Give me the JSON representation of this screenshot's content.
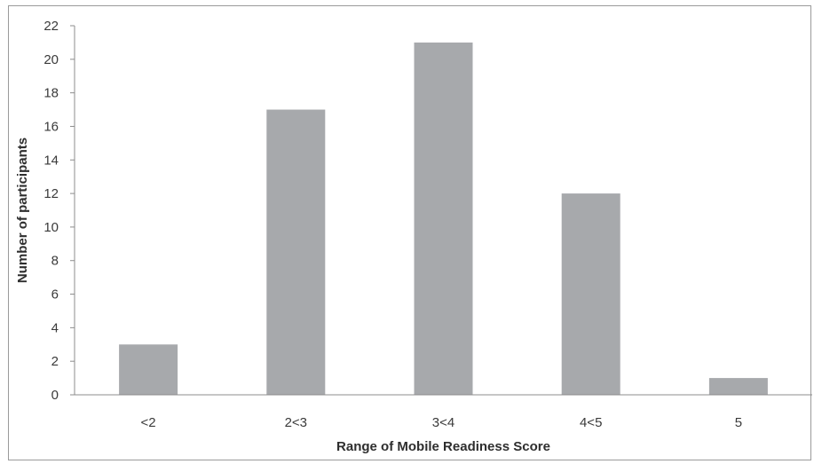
{
  "chart_data": {
    "type": "bar",
    "title": "",
    "xlabel": "Range of Mobile Readiness Score",
    "ylabel": "Number of participants",
    "categories": [
      "<2",
      "2<3",
      "3<4",
      "4<5",
      "5"
    ],
    "values": [
      3,
      17,
      21,
      12,
      1
    ],
    "ylim": [
      0,
      22
    ],
    "yticks": [
      "0",
      "2",
      "4",
      "6",
      "8",
      "10",
      "12",
      "14",
      "16",
      "18",
      "20",
      "22"
    ],
    "grid": false,
    "legend": "none",
    "bar_color": "#a7a9ac",
    "axis_color": "#8c8c8c"
  }
}
